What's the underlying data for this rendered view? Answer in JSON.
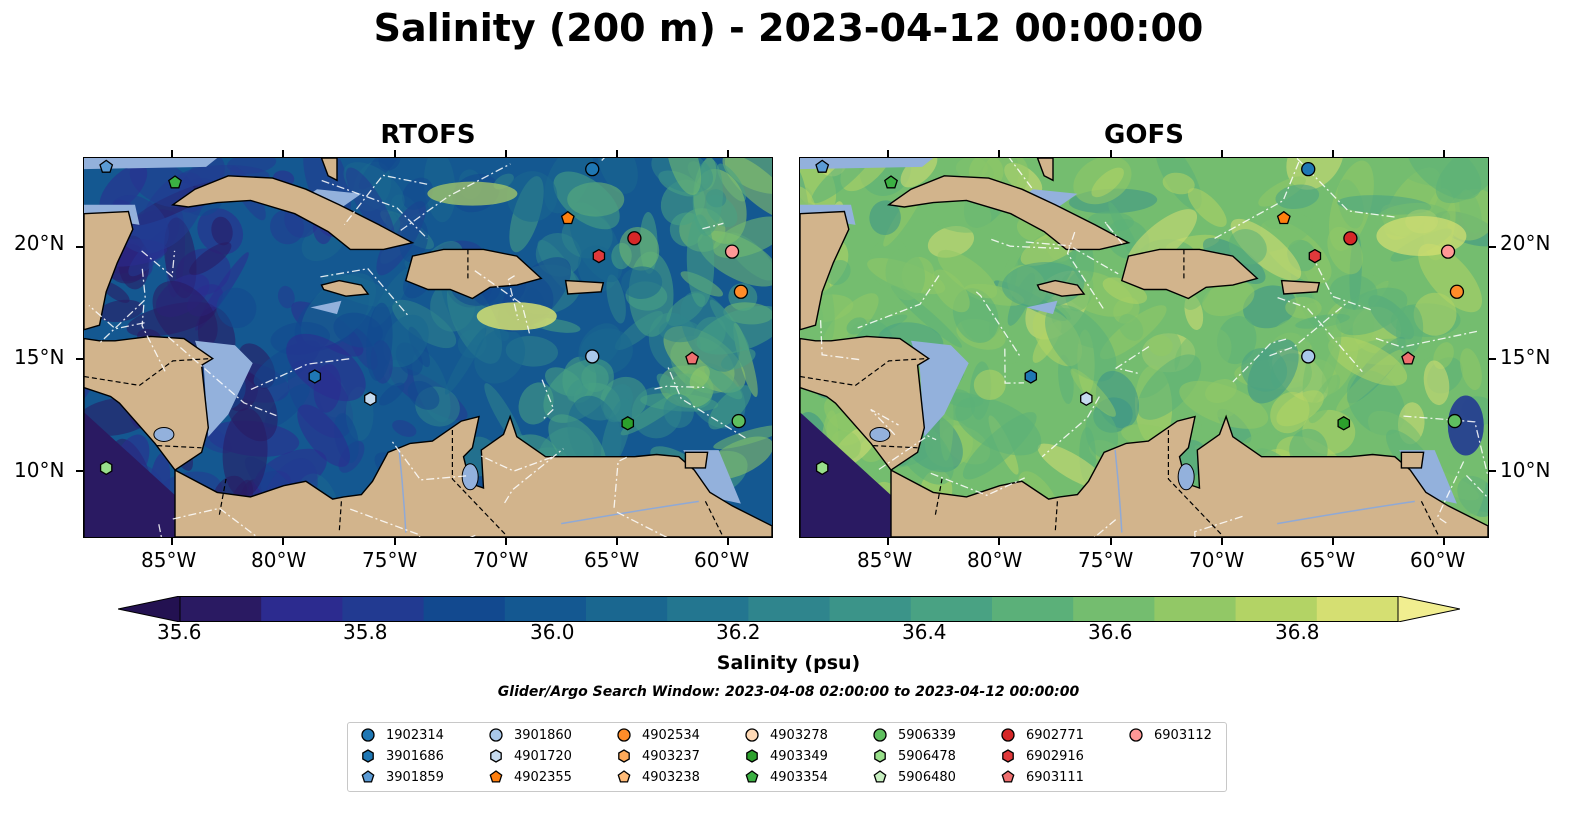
{
  "title": "Salinity (200 m) - 2023-04-12 00:00:00",
  "panels": [
    {
      "title": "RTOFS",
      "id": "rtofs"
    },
    {
      "title": "GOFS",
      "id": "gofs"
    }
  ],
  "axes": {
    "lon_ticks": [
      "85°W",
      "80°W",
      "75°W",
      "70°W",
      "65°W",
      "60°W"
    ],
    "lat_ticks": [
      "20°N",
      "15°N",
      "10°N"
    ],
    "lon_range": [
      -89,
      -58
    ],
    "lat_range": [
      7,
      24
    ]
  },
  "colorbar": {
    "label": "Salinity (psu)",
    "ticks": [
      "35.6",
      "35.8",
      "36.0",
      "36.2",
      "36.4",
      "36.6",
      "36.8"
    ],
    "range": [
      35.5,
      36.9
    ],
    "colors": [
      "#2a1a62",
      "#2c2b8f",
      "#223a91",
      "#12498f",
      "#145891",
      "#1a6790",
      "#237690",
      "#2f858d",
      "#3b9489",
      "#49a283",
      "#5bb079",
      "#74bd6f",
      "#92c866",
      "#b3d365",
      "#d5df72"
    ],
    "extend_low": "#231151",
    "extend_high": "#f1ee90"
  },
  "window_note": "Glider/Argo Search Window: 2023-04-08 02:00:00 to 2023-04-12 00:00:00",
  "colors": {
    "land": "#d2b48c",
    "shelf": "#93b1dc",
    "dark_ocean": "#2a1a62",
    "route": "#ffffff"
  },
  "legend": [
    {
      "id": "1902314",
      "marker": "circle",
      "color": "#1f77b4"
    },
    {
      "id": "3901686",
      "marker": "hexagon",
      "color": "#1f77b4"
    },
    {
      "id": "3901859",
      "marker": "pentagon",
      "color": "#5b9bd5"
    },
    {
      "id": "3901860",
      "marker": "circle",
      "color": "#a9c8ea"
    },
    {
      "id": "4901720",
      "marker": "hexagon",
      "color": "#c6dbef"
    },
    {
      "id": "4902355",
      "marker": "pentagon",
      "color": "#ff7f0e"
    },
    {
      "id": "4902534",
      "marker": "circle",
      "color": "#ff8c29"
    },
    {
      "id": "4903237",
      "marker": "hexagon",
      "color": "#ffaa5a"
    },
    {
      "id": "4903238",
      "marker": "pentagon",
      "color": "#ffbb78"
    },
    {
      "id": "4903278",
      "marker": "circle",
      "color": "#ffd9b5"
    },
    {
      "id": "4903349",
      "marker": "hexagon",
      "color": "#2ca02c"
    },
    {
      "id": "4903354",
      "marker": "pentagon",
      "color": "#3cb043"
    },
    {
      "id": "5906339",
      "marker": "circle",
      "color": "#5fbf5f"
    },
    {
      "id": "5906478",
      "marker": "hexagon",
      "color": "#98df8a"
    },
    {
      "id": "5906480",
      "marker": "pentagon",
      "color": "#c7efc0"
    },
    {
      "id": "6902771",
      "marker": "circle",
      "color": "#d62728"
    },
    {
      "id": "6902916",
      "marker": "hexagon",
      "color": "#e0393b"
    },
    {
      "id": "6903111",
      "marker": "pentagon",
      "color": "#ef6f6f"
    },
    {
      "id": "6903112",
      "marker": "circle",
      "color": "#ff9896"
    }
  ],
  "floats": [
    {
      "id": "1902314",
      "lon": -66.1,
      "lat": 23.5
    },
    {
      "id": "3901686",
      "lon": -78.6,
      "lat": 14.2
    },
    {
      "id": "3901859",
      "lon": -88.0,
      "lat": 23.6
    },
    {
      "id": "3901860",
      "lon": -66.1,
      "lat": 15.1
    },
    {
      "id": "4901720",
      "lon": -76.1,
      "lat": 13.2
    },
    {
      "id": "4902355",
      "lon": -67.2,
      "lat": 21.3
    },
    {
      "id": "4902534",
      "lon": -59.4,
      "lat": 18.0
    },
    {
      "id": "4903349",
      "lon": -64.5,
      "lat": 12.1
    },
    {
      "id": "4903354",
      "lon": -84.9,
      "lat": 22.9
    },
    {
      "id": "5906339",
      "lon": -59.5,
      "lat": 12.2
    },
    {
      "id": "5906478",
      "lon": -88.0,
      "lat": 10.1
    },
    {
      "id": "6902771",
      "lon": -64.2,
      "lat": 20.4
    },
    {
      "id": "6902916",
      "lon": -65.8,
      "lat": 19.6
    },
    {
      "id": "6903111",
      "lon": -61.6,
      "lat": 15.0
    },
    {
      "id": "6903112",
      "lon": -59.8,
      "lat": 19.8
    }
  ],
  "land": [
    {
      "name": "cuba",
      "pts": [
        [
          -85.0,
          21.9
        ],
        [
          -84.0,
          22.6
        ],
        [
          -82.5,
          23.2
        ],
        [
          -80.5,
          23.1
        ],
        [
          -79.0,
          22.6
        ],
        [
          -77.5,
          21.9
        ],
        [
          -75.7,
          21.0
        ],
        [
          -74.2,
          20.2
        ],
        [
          -75.5,
          19.9
        ],
        [
          -77.0,
          19.9
        ],
        [
          -78.0,
          20.7
        ],
        [
          -79.5,
          21.5
        ],
        [
          -81.5,
          22.1
        ],
        [
          -83.0,
          22.0
        ],
        [
          -84.3,
          21.8
        ]
      ]
    },
    {
      "name": "jamaica",
      "pts": [
        [
          -78.3,
          18.3
        ],
        [
          -77.5,
          18.5
        ],
        [
          -76.5,
          18.3
        ],
        [
          -76.2,
          17.9
        ],
        [
          -77.2,
          17.8
        ],
        [
          -78.2,
          18.1
        ]
      ]
    },
    {
      "name": "hispaniola",
      "pts": [
        [
          -74.5,
          18.5
        ],
        [
          -74.2,
          19.6
        ],
        [
          -72.8,
          19.9
        ],
        [
          -71.0,
          19.9
        ],
        [
          -69.5,
          19.6
        ],
        [
          -68.4,
          18.6
        ],
        [
          -69.5,
          18.3
        ],
        [
          -70.7,
          18.2
        ],
        [
          -71.5,
          17.7
        ],
        [
          -72.5,
          18.1
        ],
        [
          -73.5,
          18.1
        ]
      ]
    },
    {
      "name": "puerto-rico",
      "pts": [
        [
          -67.3,
          18.5
        ],
        [
          -65.6,
          18.4
        ],
        [
          -65.7,
          18.0
        ],
        [
          -67.2,
          17.9
        ]
      ]
    },
    {
      "name": "bahamas-andros",
      "pts": [
        [
          -78.3,
          24.0
        ],
        [
          -77.6,
          24.0
        ],
        [
          -77.6,
          23.0
        ],
        [
          -78.0,
          23.2
        ]
      ]
    },
    {
      "name": "central-america",
      "pts": [
        [
          -89,
          7
        ],
        [
          -89,
          13.7
        ],
        [
          -87.8,
          13.3
        ],
        [
          -87.4,
          13.0
        ],
        [
          -85.8,
          11.2
        ],
        [
          -84.9,
          10.0
        ],
        [
          -83.7,
          10.8
        ],
        [
          -83.4,
          11.9
        ],
        [
          -83.7,
          14.7
        ],
        [
          -83.2,
          15.0
        ],
        [
          -84.5,
          15.9
        ],
        [
          -86.0,
          16.0
        ],
        [
          -87.6,
          15.8
        ],
        [
          -88.3,
          15.8
        ],
        [
          -89,
          15.9
        ],
        [
          -89,
          7
        ]
      ]
    },
    {
      "name": "yucatan",
      "pts": [
        [
          -89,
          21.5
        ],
        [
          -87.0,
          21.6
        ],
        [
          -86.8,
          20.8
        ],
        [
          -87.5,
          19.3
        ],
        [
          -88.0,
          18.0
        ],
        [
          -88.3,
          16.5
        ],
        [
          -89,
          16.3
        ]
      ]
    },
    {
      "name": "panama-south",
      "pts": [
        [
          -84.9,
          10.0
        ],
        [
          -83.0,
          9.0
        ],
        [
          -81.5,
          8.8
        ],
        [
          -80.0,
          9.3
        ],
        [
          -79.0,
          9.5
        ],
        [
          -77.8,
          8.7
        ],
        [
          -77.3,
          8.8
        ],
        [
          -76.5,
          8.9
        ],
        [
          -76.0,
          9.5
        ],
        [
          -75.3,
          10.8
        ],
        [
          -74.3,
          11.2
        ],
        [
          -73.3,
          11.3
        ],
        [
          -72.0,
          12.2
        ],
        [
          -71.2,
          12.4
        ],
        [
          -71.5,
          11.0
        ],
        [
          -71.9,
          10.6
        ],
        [
          -71.6,
          9.4
        ],
        [
          -71.0,
          9.2
        ],
        [
          -71.1,
          10.9
        ],
        [
          -70.1,
          11.6
        ],
        [
          -69.8,
          12.4
        ],
        [
          -69.5,
          11.5
        ],
        [
          -68.2,
          10.6
        ],
        [
          -66.0,
          10.6
        ],
        [
          -64.2,
          10.6
        ],
        [
          -63.2,
          10.7
        ],
        [
          -62.2,
          10.6
        ],
        [
          -61.5,
          10.0
        ],
        [
          -60.8,
          9.0
        ],
        [
          -59.8,
          8.4
        ],
        [
          -58,
          7.5
        ],
        [
          -58,
          7
        ],
        [
          -84.9,
          7
        ],
        [
          -84.9,
          10.0
        ]
      ]
    },
    {
      "name": "trinidad",
      "pts": [
        [
          -61.9,
          10.8
        ],
        [
          -60.9,
          10.8
        ],
        [
          -61.0,
          10.1
        ],
        [
          -61.9,
          10.1
        ]
      ]
    }
  ]
}
